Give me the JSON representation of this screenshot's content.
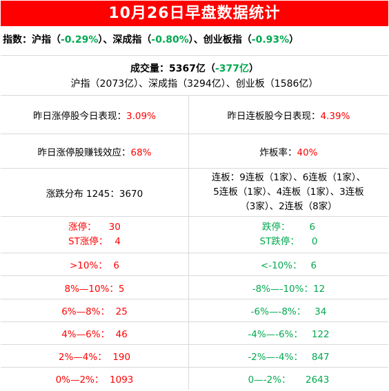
{
  "title": "10月26日早盘数据统计",
  "index": {
    "prefix": "指数：沪指（",
    "sh": "-0.29%",
    "mid1": "）、深成指（",
    "sz": "-0.80%",
    "mid2": "）、创业板指（",
    "cyb": "-0.93%",
    "suffix": "）"
  },
  "volume": {
    "label": "成交量：5367亿（",
    "change": "-377亿",
    "close": "）",
    "breakdown": "沪指（2073亿）、深成指（3294亿）、创业板（1586亿）"
  },
  "stats": {
    "zt_today_label": "昨日涨停股今日表现：",
    "zt_today_value": "3.09%",
    "lb_today_label": "昨日连板股今日表现：",
    "lb_today_value": "4.39%",
    "zt_money_label": "昨日涨停股赚钱效应：",
    "zt_money_value": "68%",
    "zb_label": "炸板率：",
    "zb_value": "40%",
    "dist": "涨跌分布 1245：3670",
    "lianban_lines": [
      "连板：9连板（1家）、6连板（1家）、",
      "5连板（1家）、4连板（1家）、3连板",
      "（3家）、2连板（8家）"
    ]
  },
  "limits": {
    "zt_label": "涨停：",
    "zt_value": "30",
    "st_zt_label": "ST涨停：",
    "st_zt_value": "4",
    "dt_label": "跌停：",
    "dt_value": "6",
    "st_dt_label": "ST跌停：",
    "st_dt_value": "0"
  },
  "ranges": [
    {
      "up_label": ">10%：",
      "up_value": "6",
      "down_label": "<-10%：",
      "down_value": "6"
    },
    {
      "up_label": "8%—10%：",
      "up_value": "5",
      "down_label": "-8%—-10%：",
      "down_value": "12"
    },
    {
      "up_label": "6%—8%：",
      "up_value": "25",
      "down_label": "-6%—-8%：",
      "down_value": "34"
    },
    {
      "up_label": "4%—6%：",
      "up_value": "46",
      "down_label": "-4%—-6%：",
      "down_value": "122"
    },
    {
      "up_label": "2%—4%：",
      "up_value": "190",
      "down_label": "-2%—-4%：",
      "down_value": "847"
    },
    {
      "up_label": "0%—2%：",
      "up_value": "1093",
      "down_label": "0—-2%：",
      "down_value": "2643"
    }
  ],
  "colors": {
    "header_bg": "#ff0000",
    "up": "#ff0000",
    "down": "#00a94f",
    "border": "#d9d9d9"
  }
}
